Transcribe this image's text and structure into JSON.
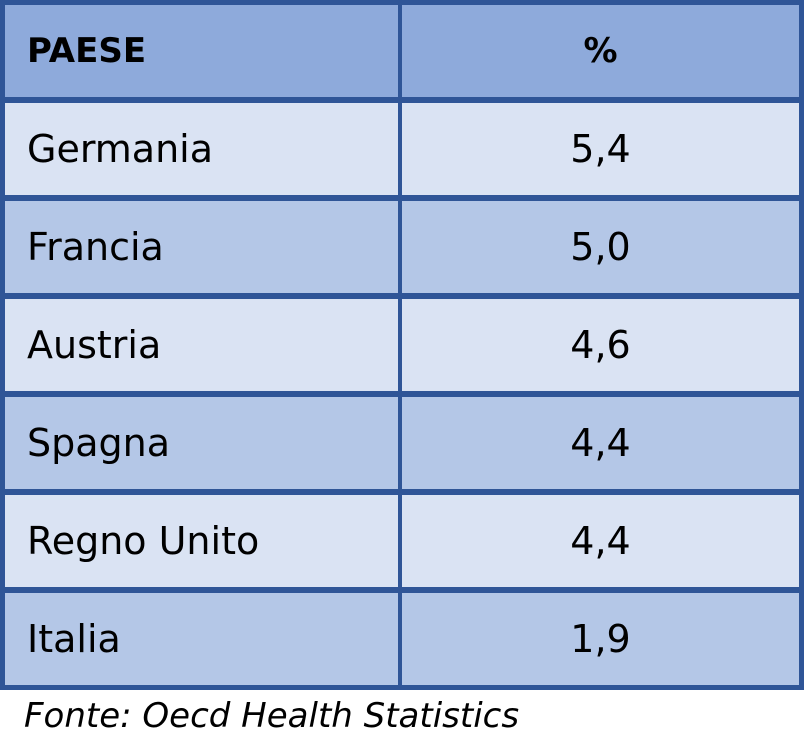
{
  "chart_data": {
    "type": "table",
    "columns": [
      "PAESE",
      "%"
    ],
    "rows": [
      {
        "paese": "Germania",
        "valore": "5,4"
      },
      {
        "paese": "Francia",
        "valore": "5,0"
      },
      {
        "paese": "Austria",
        "valore": "4,6"
      },
      {
        "paese": "Spagna",
        "valore": "4,4"
      },
      {
        "paese": "Regno Unito",
        "valore": "4,4"
      },
      {
        "paese": "Italia",
        "valore": "1,9"
      }
    ],
    "values": [
      5.4,
      5.0,
      4.6,
      4.4,
      4.4,
      1.9
    ],
    "source": "Fonte: Oecd Health Statistics"
  },
  "colors": {
    "border": "#2f5597",
    "header_fill": "#8eaadb",
    "row_light": "#dae3f3",
    "row_medium": "#b4c7e7"
  }
}
